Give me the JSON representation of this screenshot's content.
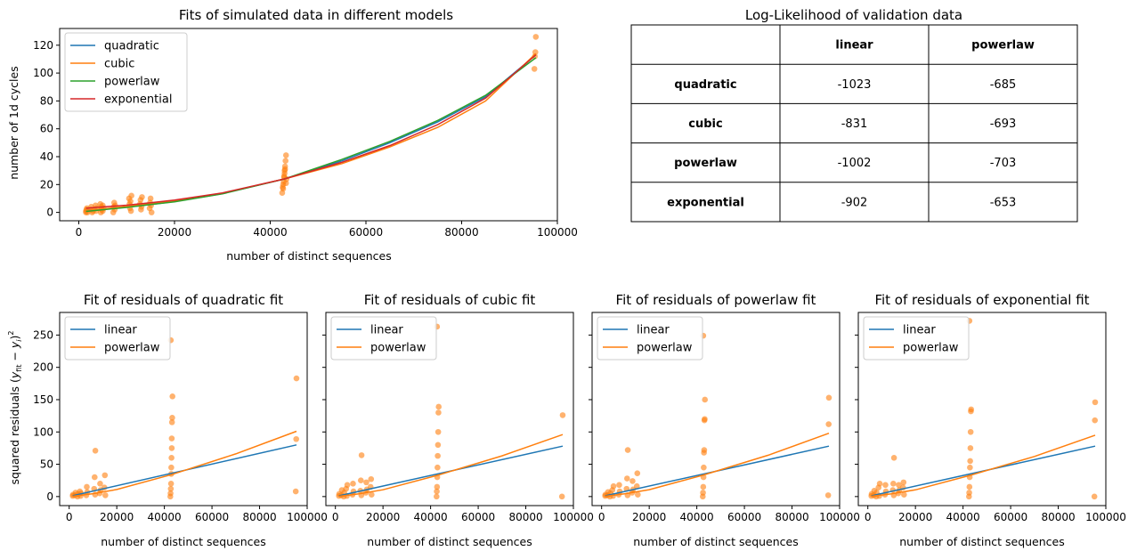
{
  "colors": {
    "blue": "#1f77b4",
    "orange": "#ff7f0e",
    "green": "#2ca02c",
    "red": "#d62728",
    "scatter": "#ff7f0e"
  },
  "chart_data": [
    {
      "type": "line",
      "title": "Fits of simulated data in different models",
      "xlabel": "number of distinct sequences",
      "ylabel": "number of 1d cycles",
      "xlim": [
        -4000,
        100000
      ],
      "ylim": [
        -6,
        132
      ],
      "xticks": [
        0,
        20000,
        40000,
        60000,
        80000,
        100000
      ],
      "yticks": [
        0,
        20,
        40,
        60,
        80,
        100,
        120
      ],
      "legend_position": "upper-left",
      "series": [
        {
          "name": "quadratic",
          "color": "blue",
          "x": [
            1500,
            5000,
            10000,
            15000,
            20000,
            30000,
            43000,
            55000,
            65000,
            75000,
            85000,
            95500
          ],
          "y": [
            1.5,
            2.3,
            3.8,
            5.7,
            7.8,
            13.5,
            24,
            37,
            50,
            65,
            83,
            113
          ]
        },
        {
          "name": "cubic",
          "color": "orange",
          "x": [
            1500,
            5000,
            10000,
            15000,
            20000,
            30000,
            43000,
            55000,
            65000,
            75000,
            85000,
            95500
          ],
          "y": [
            1.4,
            2.5,
            4.3,
            6.2,
            8.2,
            13.6,
            24,
            35,
            47,
            61,
            80,
            114
          ]
        },
        {
          "name": "powerlaw",
          "color": "green",
          "x": [
            1500,
            5000,
            10000,
            15000,
            20000,
            30000,
            43000,
            55000,
            65000,
            75000,
            85000,
            95500
          ],
          "y": [
            0.7,
            1.9,
            3.6,
            5.6,
            7.6,
            13.3,
            24,
            38,
            51,
            66,
            84,
            111
          ]
        },
        {
          "name": "exponential",
          "color": "red",
          "x": [
            1500,
            5000,
            10000,
            15000,
            20000,
            30000,
            43000,
            55000,
            65000,
            75000,
            85000,
            95500
          ],
          "y": [
            3.0,
            3.9,
            5.2,
            6.9,
            8.9,
            14,
            24,
            36,
            48,
            63,
            82,
            113
          ]
        }
      ],
      "scatter": {
        "color": "scatter",
        "x": [
          1500,
          1500,
          1600,
          1700,
          1800,
          2500,
          2600,
          2800,
          3000,
          3500,
          3600,
          3700,
          4500,
          4600,
          4700,
          4800,
          5000,
          5000,
          5200,
          7200,
          7300,
          7400,
          7500,
          7600,
          10500,
          10600,
          10700,
          10800,
          10900,
          11000,
          12800,
          12900,
          13000,
          13100,
          13200,
          14800,
          14900,
          15000,
          15100,
          15200,
          42500,
          42600,
          42700,
          42800,
          42900,
          43000,
          43000,
          43100,
          43200,
          43300,
          43400,
          42700,
          42900,
          43100,
          43300,
          95200,
          95300,
          95400,
          95500
        ],
        "y": [
          0,
          1,
          2,
          3,
          0,
          2,
          4,
          0,
          1,
          5,
          1,
          3,
          6,
          0,
          4,
          2,
          5,
          1,
          3,
          0,
          4,
          7,
          2,
          5,
          10,
          6,
          3,
          8,
          1,
          12,
          6,
          9,
          2,
          4,
          11,
          3,
          7,
          10,
          5,
          0,
          14,
          18,
          20,
          22,
          25,
          28,
          30,
          33,
          37,
          41,
          24,
          17,
          26,
          31,
          21,
          103,
          112,
          115,
          126
        ]
      },
      "legend_entries": [
        "quadratic",
        "cubic",
        "powerlaw",
        "exponential"
      ]
    },
    {
      "type": "table",
      "title": "Log-Likelihood of validation data",
      "col_headers": [
        "",
        "linear",
        "powerlaw"
      ],
      "rows": [
        {
          "label": "quadratic",
          "values": [
            "-1023",
            "-685"
          ]
        },
        {
          "label": "cubic",
          "values": [
            "-831",
            "-693"
          ]
        },
        {
          "label": "powerlaw",
          "values": [
            "-1002",
            "-703"
          ]
        },
        {
          "label": "exponential",
          "values": [
            "-902",
            "-653"
          ]
        }
      ]
    },
    {
      "type": "line",
      "title": "Fit of residuals of quadratic fit",
      "xlabel": "number of distinct sequences",
      "ylabel": "squared residuals",
      "xlim": [
        -4000,
        100000
      ],
      "ylim": [
        -14,
        285
      ],
      "xticks": [
        0,
        20000,
        40000,
        60000,
        80000,
        100000
      ],
      "yticks": [
        0,
        50,
        100,
        150,
        200,
        250
      ],
      "series": [
        {
          "name": "linear",
          "color": "blue",
          "x": [
            1500,
            95500
          ],
          "y": [
            1.3,
            80
          ]
        },
        {
          "name": "powerlaw",
          "color": "orange",
          "x": [
            1500,
            10000,
            20000,
            43000,
            70000,
            95500
          ],
          "y": [
            0.4,
            4.5,
            11,
            34,
            66,
            101
          ]
        }
      ],
      "scatter": {
        "color": "scatter",
        "x": [
          1500,
          1600,
          2500,
          2700,
          3500,
          3700,
          4500,
          4800,
          5000,
          7200,
          7400,
          7600,
          10500,
          10700,
          10900,
          11000,
          12800,
          13000,
          13200,
          14800,
          15000,
          15200,
          42500,
          42600,
          42700,
          42800,
          42900,
          43000,
          43100,
          43200,
          43300,
          43400,
          42700,
          42900,
          43100,
          95200,
          95400,
          95500
        ],
        "y": [
          1,
          3,
          2,
          6,
          0,
          4,
          8,
          1,
          5,
          2,
          15,
          7,
          12,
          30,
          3,
          71,
          5,
          20,
          10,
          14,
          33,
          2,
          0,
          5,
          12,
          20,
          35,
          60,
          75,
          115,
          122,
          155,
          242,
          45,
          90,
          8,
          89,
          183
        ]
      },
      "legend_entries": [
        "linear",
        "powerlaw"
      ]
    },
    {
      "type": "line",
      "title": "Fit of residuals of cubic fit",
      "xlabel": "number of distinct sequences",
      "xlim": [
        -4000,
        100000
      ],
      "ylim": [
        -14,
        285
      ],
      "xticks": [
        0,
        20000,
        40000,
        60000,
        80000,
        100000
      ],
      "series": [
        {
          "name": "linear",
          "color": "blue",
          "x": [
            1500,
            95500
          ],
          "y": [
            1.2,
            78
          ]
        },
        {
          "name": "powerlaw",
          "color": "orange",
          "x": [
            1500,
            10000,
            20000,
            43000,
            70000,
            95500
          ],
          "y": [
            0.4,
            4.3,
            10.5,
            33,
            63,
            96
          ]
        }
      ],
      "scatter": {
        "color": "scatter",
        "x": [
          1500,
          1600,
          2500,
          2700,
          3500,
          3700,
          4500,
          4800,
          5000,
          7200,
          7400,
          7600,
          10500,
          10700,
          10900,
          11000,
          12800,
          13000,
          13200,
          14800,
          15000,
          15200,
          42500,
          42600,
          42700,
          42800,
          42900,
          43000,
          43100,
          43200,
          43300,
          43400,
          42700,
          95200,
          95500
        ],
        "y": [
          1,
          4,
          2,
          10,
          0,
          6,
          12,
          1,
          18,
          3,
          20,
          8,
          9,
          25,
          2,
          64,
          6,
          22,
          11,
          15,
          27,
          3,
          0,
          8,
          15,
          30,
          45,
          63,
          80,
          100,
          130,
          139,
          263,
          0,
          126
        ]
      },
      "legend_entries": [
        "linear",
        "powerlaw"
      ]
    },
    {
      "type": "line",
      "title": "Fit of residuals of powerlaw fit",
      "xlabel": "number of distinct sequences",
      "xlim": [
        -4000,
        100000
      ],
      "ylim": [
        -14,
        285
      ],
      "xticks": [
        0,
        20000,
        40000,
        60000,
        80000,
        100000
      ],
      "series": [
        {
          "name": "linear",
          "color": "blue",
          "x": [
            1500,
            95500
          ],
          "y": [
            1.2,
            78
          ]
        },
        {
          "name": "powerlaw",
          "color": "orange",
          "x": [
            1500,
            10000,
            20000,
            43000,
            70000,
            95500
          ],
          "y": [
            0.4,
            4.4,
            10.7,
            33.5,
            64,
            98
          ]
        }
      ],
      "scatter": {
        "color": "scatter",
        "x": [
          1500,
          1600,
          2500,
          2700,
          3500,
          3700,
          4500,
          4800,
          5000,
          7200,
          7400,
          7600,
          10500,
          10700,
          10900,
          11000,
          12800,
          13000,
          13200,
          14800,
          15000,
          15200,
          42500,
          42600,
          42700,
          42800,
          42900,
          43000,
          43100,
          43200,
          43300,
          43400,
          42700,
          95200,
          95400,
          95500
        ],
        "y": [
          1,
          3,
          2,
          7,
          0,
          5,
          10,
          1,
          16,
          3,
          18,
          8,
          12,
          28,
          2,
          72,
          6,
          24,
          11,
          16,
          36,
          3,
          0,
          6,
          15,
          30,
          45,
          68,
          72,
          118,
          120,
          150,
          249,
          2,
          112,
          153
        ]
      },
      "legend_entries": [
        "linear",
        "powerlaw"
      ]
    },
    {
      "type": "line",
      "title": "Fit of residuals of exponential fit",
      "xlabel": "number of distinct sequences",
      "xlim": [
        -4000,
        100000
      ],
      "ylim": [
        -14,
        285
      ],
      "xticks": [
        0,
        20000,
        40000,
        60000,
        80000,
        100000
      ],
      "series": [
        {
          "name": "linear",
          "color": "blue",
          "x": [
            1500,
            95500
          ],
          "y": [
            1.2,
            78
          ]
        },
        {
          "name": "powerlaw",
          "color": "orange",
          "x": [
            1500,
            10000,
            20000,
            43000,
            70000,
            95500
          ],
          "y": [
            0.4,
            4.3,
            10.4,
            32.8,
            62,
            95
          ]
        }
      ],
      "scatter": {
        "color": "scatter",
        "x": [
          1500,
          1600,
          2500,
          2700,
          3500,
          3700,
          4500,
          4800,
          5000,
          7200,
          7400,
          7600,
          10500,
          10700,
          10900,
          11000,
          12800,
          13000,
          13200,
          14800,
          15000,
          15200,
          42500,
          42600,
          42700,
          42800,
          42900,
          43000,
          43100,
          43200,
          43300,
          43400,
          42700,
          95200,
          95400,
          95500
        ],
        "y": [
          1,
          4,
          2,
          9,
          0,
          6,
          14,
          1,
          20,
          3,
          18,
          8,
          10,
          20,
          2,
          60,
          5,
          18,
          10,
          14,
          22,
          3,
          0,
          6,
          15,
          30,
          45,
          55,
          75,
          100,
          132,
          135,
          272,
          0,
          118,
          146
        ]
      },
      "legend_entries": [
        "linear",
        "powerlaw"
      ]
    }
  ]
}
